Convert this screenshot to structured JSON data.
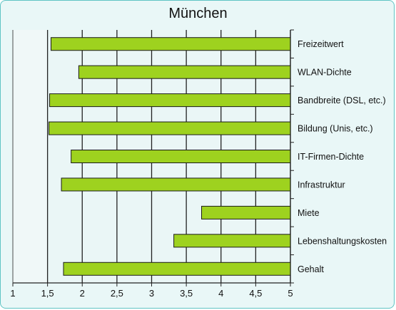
{
  "chart_data": {
    "type": "bar",
    "orientation": "horizontal",
    "title": "München",
    "categories": [
      "Freizeitwert",
      "WLAN-Dichte",
      "Bandbreite (DSL, etc.)",
      "Bildung (Unis, etc.)",
      "IT-Firmen-Dichte",
      "Infrastruktur",
      "Miete",
      "Lebenshaltungskosten",
      "Gehalt"
    ],
    "series": [
      {
        "values": [
          1.55,
          1.95,
          1.53,
          1.52,
          1.84,
          1.7,
          3.72,
          3.32,
          1.73
        ]
      }
    ],
    "xlim": [
      1,
      5
    ],
    "xticks": [
      "1",
      "1,5",
      "2",
      "2,5",
      "3",
      "3,5",
      "4",
      "4,5",
      "5"
    ],
    "bars_extend_to": 5,
    "grid": true,
    "legend": "none",
    "colors": {
      "bar_fill": "#9ed21f",
      "bar_stroke": "#1a1a1a",
      "background": "#e9f7f7",
      "plot_shade": "#f0f8f8",
      "border": "#5fc4c4"
    }
  }
}
